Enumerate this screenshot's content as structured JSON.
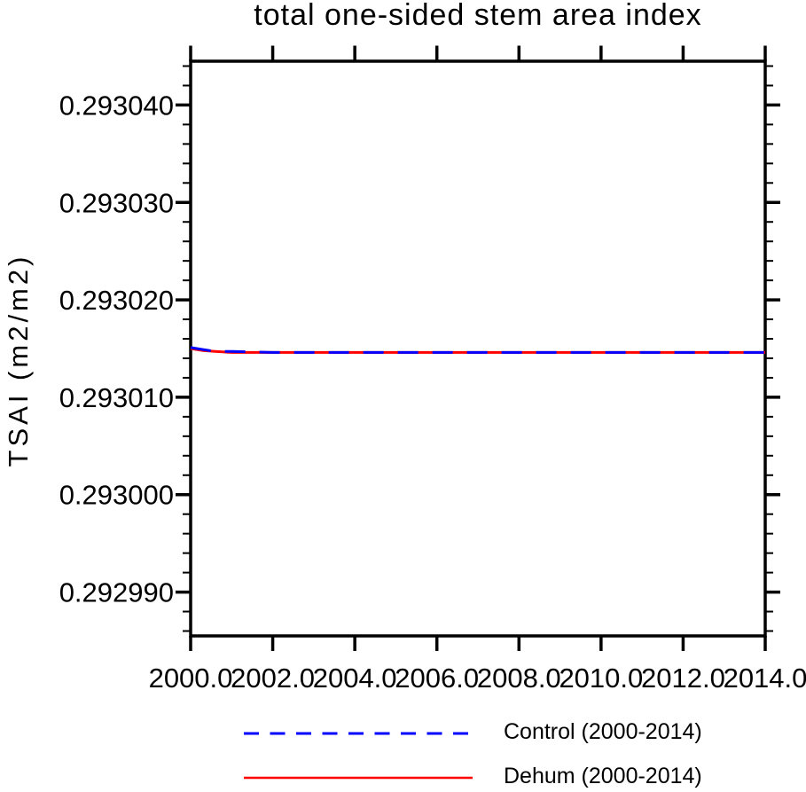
{
  "figure": {
    "background_color": "#ffffff",
    "text_color": "#000000"
  },
  "chart_data": {
    "type": "line",
    "title": "total one-sided stem area index",
    "xlabel": "",
    "ylabel": "TSAI (m2/m2)",
    "xlim": [
      2000.0,
      2014.0
    ],
    "ylim": [
      0.2929855,
      0.2930445
    ],
    "grid": false,
    "legend_position": "below-chart",
    "x_ticks": {
      "values": [
        2000.0,
        2002.0,
        2004.0,
        2006.0,
        2008.0,
        2010.0,
        2012.0,
        2014.0
      ],
      "labels": [
        "2000.0",
        "2002.0",
        "2004.0",
        "2006.0",
        "2008.0",
        "2010.0",
        "2012.0",
        "2014.0"
      ]
    },
    "y_ticks": {
      "values": [
        0.29299,
        0.293,
        0.29301,
        0.29302,
        0.29303,
        0.29304
      ],
      "labels": [
        "0.292990",
        "0.293000",
        "0.293010",
        "0.293020",
        "0.293030",
        "0.293040"
      ]
    },
    "y_minor_step": 2e-06,
    "y_major_step": 1e-05,
    "series": [
      {
        "name": "Control (2000-2014)",
        "color": "#0000ff",
        "line_style": "dashed",
        "x": [
          2000.0,
          2000.3,
          2000.6,
          2001.0,
          2002.0,
          2003.0,
          2004.0,
          2005.0,
          2006.0,
          2007.0,
          2008.0,
          2009.0,
          2010.0,
          2011.0,
          2012.0,
          2013.0,
          2014.0
        ],
        "y": [
          0.2930151,
          0.2930149,
          0.2930147,
          0.2930147,
          0.2930146,
          0.2930146,
          0.2930146,
          0.2930146,
          0.2930146,
          0.2930146,
          0.2930146,
          0.2930146,
          0.2930146,
          0.2930146,
          0.2930146,
          0.2930146,
          0.2930146
        ]
      },
      {
        "name": "Dehum (2000-2014)",
        "color": "#ff0000",
        "line_style": "solid",
        "x": [
          2000.0,
          2000.3,
          2000.6,
          2001.0,
          2002.0,
          2003.0,
          2004.0,
          2005.0,
          2006.0,
          2007.0,
          2008.0,
          2009.0,
          2010.0,
          2011.0,
          2012.0,
          2013.0,
          2014.0
        ],
        "y": [
          0.293015,
          0.2930148,
          0.2930147,
          0.2930146,
          0.2930146,
          0.2930146,
          0.2930146,
          0.2930146,
          0.2930146,
          0.2930146,
          0.2930146,
          0.2930146,
          0.2930146,
          0.2930146,
          0.2930146,
          0.2930146,
          0.2930146
        ]
      }
    ]
  }
}
